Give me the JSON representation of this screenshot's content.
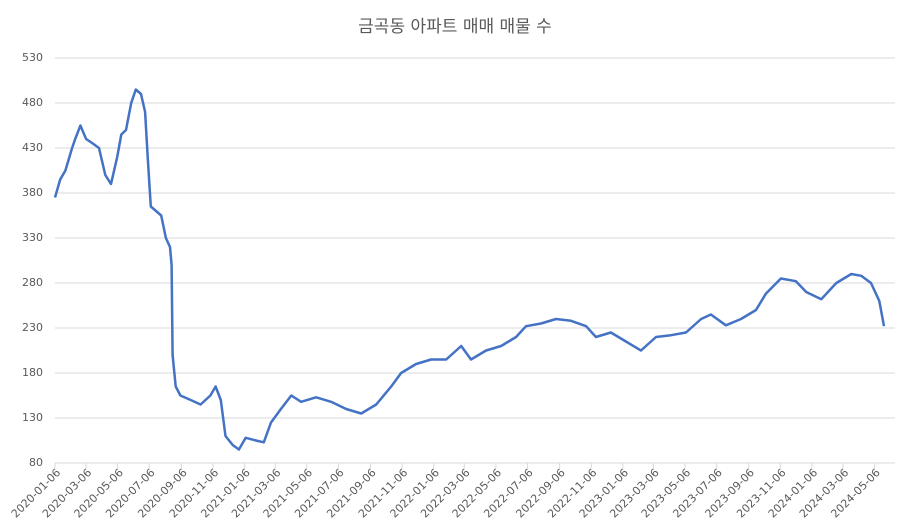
{
  "chart_data": {
    "type": "line",
    "title": "금곡동 아파트 매매 매물 수",
    "x": [
      "2020-01-06",
      "2020-01-16",
      "2020-01-26",
      "2020-02-08",
      "2020-02-14",
      "2020-02-24",
      "2020-03-06",
      "2020-03-19",
      "2020-03-31",
      "2020-04-12",
      "2020-04-23",
      "2020-05-05",
      "2020-05-13",
      "2020-05-22",
      "2020-06-01",
      "2020-06-10",
      "2020-06-20",
      "2020-06-28",
      "2020-07-03",
      "2020-07-09",
      "2020-07-19",
      "2020-07-29",
      "2020-08-07",
      "2020-08-15",
      "2020-08-18",
      "2020-08-20",
      "2020-08-26",
      "2020-09-04",
      "2020-09-24",
      "2020-10-13",
      "2020-11-01",
      "2020-11-11",
      "2020-11-21",
      "2020-11-30",
      "2020-12-14",
      "2020-12-26",
      "2021-01-08",
      "2021-01-28",
      "2021-02-12",
      "2021-02-26",
      "2021-03-17",
      "2021-04-06",
      "2021-04-25",
      "2021-05-24",
      "2021-06-22",
      "2021-07-21",
      "2021-08-19",
      "2021-09-17",
      "2021-10-16",
      "2021-11-04",
      "2021-12-03",
      "2022-01-01",
      "2022-01-30",
      "2022-02-28",
      "2022-03-19",
      "2022-04-17",
      "2022-05-16",
      "2022-06-14",
      "2022-07-03",
      "2022-08-01",
      "2022-08-30",
      "2022-09-28",
      "2022-10-27",
      "2022-11-15",
      "2022-12-14",
      "2023-01-12",
      "2023-02-10",
      "2023-03-11",
      "2023-04-09",
      "2023-05-08",
      "2023-06-06",
      "2023-06-25",
      "2023-07-24",
      "2023-08-22",
      "2023-09-20",
      "2023-10-09",
      "2023-11-07",
      "2023-12-06",
      "2023-12-26",
      "2024-01-24",
      "2024-02-22",
      "2024-03-22",
      "2024-04-10",
      "2024-04-29",
      "2024-05-15",
      "2024-05-24"
    ],
    "series": [
      {
        "name": "매물 수",
        "color": "#4472c4",
        "values": [
          375,
          395,
          405,
          430,
          440,
          455,
          440,
          435,
          430,
          400,
          390,
          420,
          445,
          450,
          480,
          495,
          490,
          470,
          420,
          365,
          360,
          355,
          330,
          320,
          300,
          200,
          165,
          155,
          150,
          145,
          155,
          165,
          150,
          110,
          100,
          95,
          108,
          105,
          103,
          125,
          140,
          155,
          148,
          153,
          148,
          140,
          135,
          145,
          165,
          180,
          190,
          195,
          195,
          210,
          195,
          205,
          210,
          220,
          232,
          235,
          240,
          238,
          232,
          220,
          225,
          215,
          205,
          220,
          222,
          225,
          240,
          245,
          233,
          240,
          250,
          268,
          285,
          282,
          270,
          262,
          280,
          290,
          288,
          280,
          260,
          232
        ]
      }
    ],
    "xlim": [
      "2020-01-06",
      "2024-05-26"
    ],
    "xticks": [
      "2020-01-06",
      "2020-03-06",
      "2020-05-06",
      "2020-07-06",
      "2020-09-06",
      "2020-11-06",
      "2021-01-06",
      "2021-03-06",
      "2021-05-06",
      "2021-07-06",
      "2021-09-06",
      "2021-11-06",
      "2022-01-06",
      "2022-03-06",
      "2022-05-06",
      "2022-07-06",
      "2022-09-06",
      "2022-11-06",
      "2023-01-06",
      "2023-03-06",
      "2023-05-06",
      "2023-07-06",
      "2023-09-06",
      "2023-11-06",
      "2024-01-06",
      "2024-03-06",
      "2024-05-06"
    ],
    "ylim": [
      80,
      530
    ],
    "yticks": [
      80,
      130,
      180,
      230,
      280,
      330,
      380,
      430,
      480,
      530
    ],
    "grid": true
  }
}
